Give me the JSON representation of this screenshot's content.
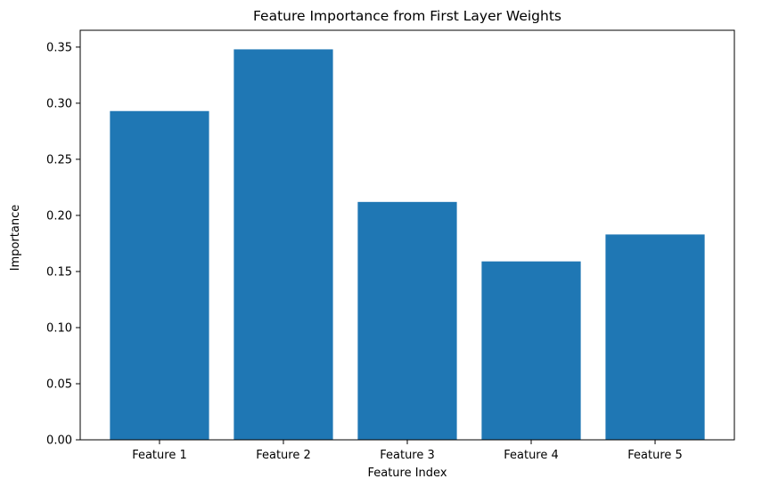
{
  "chart_data": {
    "type": "bar",
    "title": "Feature Importance from First Layer Weights",
    "xlabel": "Feature Index",
    "ylabel": "Importance",
    "categories": [
      "Feature 1",
      "Feature 2",
      "Feature 3",
      "Feature 4",
      "Feature 5"
    ],
    "values": [
      0.293,
      0.348,
      0.212,
      0.159,
      0.183
    ],
    "ylim": [
      0,
      0.365
    ],
    "yticks": [
      "0.00",
      "0.05",
      "0.10",
      "0.15",
      "0.20",
      "0.25",
      "0.30",
      "0.35"
    ],
    "grid": false,
    "legend": "none",
    "bar_color": "#1f77b4"
  }
}
